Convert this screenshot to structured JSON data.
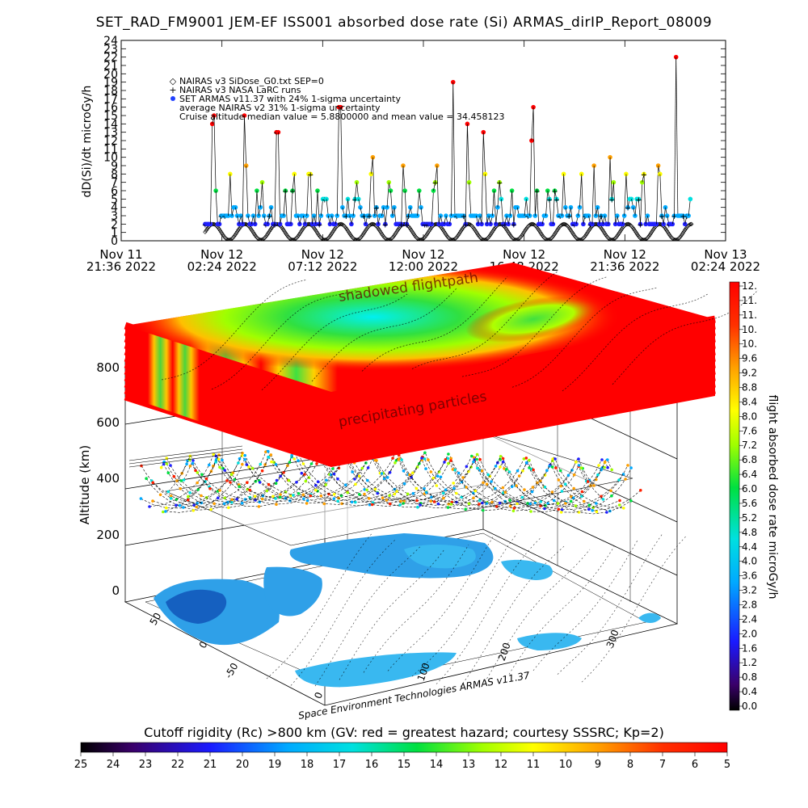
{
  "title": "SET_RAD_FM9001  JEM-EF ISS001 absorbed dose rate (Si) ARMAS_dirIP_Report_08009",
  "chart_data": [
    {
      "type": "scatter",
      "title": "SET_RAD_FM9001  JEM-EF ISS001 absorbed dose rate (Si) ARMAS_dirIP_Report_08009",
      "ylabel": "dD(Si)/dt microGy/h",
      "ylim": [
        0,
        24
      ],
      "yticks": [
        0,
        1,
        2,
        3,
        4,
        5,
        6,
        7,
        8,
        9,
        10,
        11,
        12,
        13,
        14,
        15,
        16,
        17,
        18,
        19,
        20,
        21,
        22,
        23,
        24
      ],
      "xticks": [
        {
          "l1": "Nov 11",
          "l2": "21:36 2022"
        },
        {
          "l1": "Nov 12",
          "l2": "02:24 2022"
        },
        {
          "l1": "Nov 12",
          "l2": "07:12 2022"
        },
        {
          "l1": "Nov 12",
          "l2": "12:00 2022"
        },
        {
          "l1": "Nov 12",
          "l2": "16:48 2022"
        },
        {
          "l1": "Nov 12",
          "l2": "21:36 2022"
        },
        {
          "l1": "Nov 13",
          "l2": "02:24 2022"
        }
      ],
      "xlim_hours": [
        0,
        28.8
      ],
      "legend_position": "top-left",
      "legend": [
        {
          "sym": "◇",
          "text": "NAIRAS v3 SiDose_G0.txt SEP=0"
        },
        {
          "sym": "+",
          "text": "NAIRAS v3 NASA LaRC runs"
        },
        {
          "sym": "●",
          "text": "SET ARMAS v11.37 with 24% 1-sigma uncertainty"
        },
        {
          "sym": "",
          "text": "average NAIRAS v2 31% 1-sigma uncertainty"
        },
        {
          "sym": "",
          "text": "Cruise altitude median value = 5.8800000 and mean value = 34.458123"
        }
      ],
      "series": [
        {
          "name": "NAIRAS v3 SiDose_G0.txt SEP=0",
          "model": "oscillation",
          "period_hours": 1.52,
          "min": 0.1,
          "max": 2.0,
          "start_hour": 4.0,
          "end_hour": 27.2
        },
        {
          "name": "SET ARMAS v11.37",
          "model": "orbit-peaks",
          "period_hours": 0.76,
          "baseline": [
            2,
            3
          ],
          "peak_range": [
            6,
            24
          ],
          "start_hour": 4.0,
          "end_hour": 27.2
        }
      ]
    },
    {
      "type": "3d-surface",
      "zlabel": "Altitude (km)",
      "zticks": [
        0,
        200,
        400,
        600,
        800
      ],
      "x_axis_ticks": [
        "0",
        "100",
        "200",
        "300"
      ],
      "y_axis_ticks": [
        "-50",
        "0",
        "50"
      ],
      "annotations": [
        "shadowed flightpath",
        "precipitating particles"
      ],
      "credit": "Space Environment Technologies ARMAS v11.37"
    },
    {
      "type": "colorbar",
      "label": "flight absorbed dose rate microGy/h",
      "ticks": [
        "12.",
        "11.",
        "11.",
        "10.",
        "10.",
        "9.6",
        "9.2",
        "8.8",
        "8.4",
        "8.0",
        "7.6",
        "7.2",
        "6.8",
        "6.4",
        "6.0",
        "5.6",
        "5.2",
        "4.8",
        "4.4",
        "4.0",
        "3.6",
        "3.2",
        "2.8",
        "2.4",
        "2.0",
        "1.6",
        "1.2",
        "0.8",
        "0.4",
        "0.0"
      ]
    },
    {
      "type": "colorbar",
      "label": "Cutoff rigidity (Rc) >800 km (GV: red = greatest hazard; courtesy SSSRC; Kp=2)",
      "ticks": [
        "25",
        "24",
        "23",
        "22",
        "21",
        "20",
        "19",
        "18",
        "17",
        "16",
        "15",
        "14",
        "13",
        "12",
        "11",
        "10",
        "9",
        "8",
        "7",
        "6",
        "5"
      ]
    }
  ],
  "colors": {
    "spectrum": [
      "#000000",
      "#4b0082",
      "#2020ff",
      "#00aaff",
      "#00e0e0",
      "#00e040",
      "#a0ff00",
      "#ffff00",
      "#ffa000",
      "#ff2000",
      "#ff0000"
    ],
    "ocean": "#39b8f0",
    "land": "#2fa0e8"
  }
}
